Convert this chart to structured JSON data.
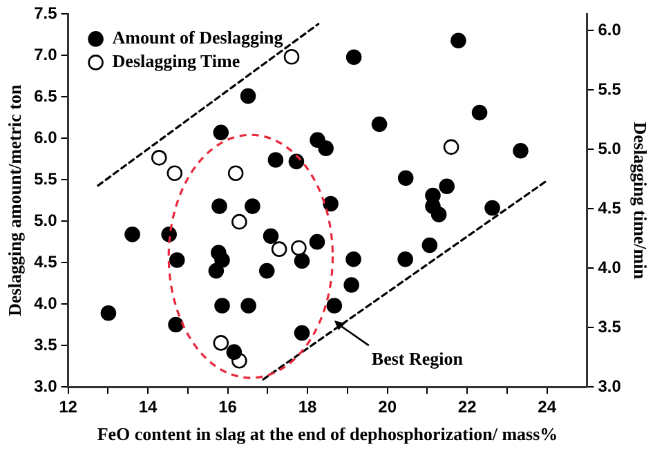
{
  "chart_data": {
    "type": "scatter",
    "xlabel": "FeO content in slag at the end of dephosphorization/ mass%",
    "ylabel": "Deslagging amount/metric ton",
    "y2label": "Deslagging time/min",
    "xlim": [
      12,
      25
    ],
    "xticks": [
      12,
      {
        "value": 13,
        "label": null
      },
      14,
      {
        "value": 15,
        "label": null
      },
      16,
      {
        "value": 17,
        "label": null
      },
      18,
      {
        "value": 19,
        "label": null
      },
      20,
      {
        "value": 21,
        "label": null
      },
      22,
      {
        "value": 23,
        "label": null
      },
      24
    ],
    "ylim": [
      3,
      7.5
    ],
    "yticks": [
      {
        "value": 3,
        "label": "3.0"
      },
      3.5,
      {
        "value": 4,
        "label": "4.0"
      },
      4.5,
      {
        "value": 5,
        "label": "5.0"
      },
      5.5,
      {
        "value": 6,
        "label": "6.0"
      },
      6.5,
      {
        "value": 7,
        "label": "7.0"
      },
      7.5
    ],
    "y2lim": [
      3,
      6.14
    ],
    "y2ticks": [
      {
        "value": 3,
        "label": "3.0"
      },
      3.5,
      {
        "value": 4,
        "label": "4.0"
      },
      4.5,
      {
        "value": 5,
        "label": "5.0"
      },
      5.5,
      {
        "value": 6,
        "label": "6.0"
      }
    ],
    "legend": "top left",
    "grid": false,
    "annotations": [
      {
        "text": "Best Region",
        "x": 18.67,
        "y": 3.8
      }
    ],
    "series": [
      {
        "name": "Amount of Deslagging",
        "color": "#000000",
        "marker": "circle",
        "x": [
          16.51,
          15.83,
          17.2,
          17.72,
          18.25,
          18.46,
          19.16,
          21.78,
          19.8,
          22.31,
          23.34,
          20.46,
          21.14,
          21.49,
          18.58,
          15.79,
          16.62,
          13.61,
          14.53,
          17.08,
          18.24,
          14.73,
          15.77,
          15.86,
          15.71,
          16.98,
          17.86,
          15.86,
          16.52,
          13.01,
          14.7,
          17.86,
          16.16,
          21.14,
          21.29,
          22.63,
          19.15,
          20.45,
          21.06,
          19.1,
          18.67
        ],
        "values": [
          6.51,
          6.07,
          5.74,
          5.72,
          5.98,
          5.88,
          6.98,
          7.18,
          6.17,
          6.31,
          5.85,
          5.52,
          5.31,
          5.42,
          5.21,
          5.18,
          5.18,
          4.84,
          4.84,
          4.82,
          4.75,
          4.53,
          4.62,
          4.53,
          4.4,
          4.4,
          4.52,
          3.98,
          3.98,
          3.89,
          3.75,
          3.65,
          3.42,
          5.18,
          5.08,
          5.16,
          4.54,
          4.54,
          4.71,
          4.23,
          3.98
        ]
      },
      {
        "name": "Deslagging Time",
        "color": "#000000",
        "marker": "circle",
        "axis": "y2",
        "x": [
          17.6,
          14.28,
          14.67,
          16.2,
          21.6,
          16.29,
          17.29,
          17.78,
          15.83,
          16.29
        ],
        "values": [
          5.78,
          4.93,
          4.8,
          4.8,
          5.02,
          4.39,
          4.16,
          4.17,
          3.37,
          3.22
        ]
      },
      {
        "type": "line",
        "color": "#000000",
        "marker": "none",
        "line_style": "dashed",
        "x": [
          12.75,
          18.27
        ],
        "values": [
          5.43,
          7.38
        ]
      },
      {
        "type": "line",
        "color": "#000000",
        "marker": "none",
        "line_style": "dashed",
        "x": [
          16.89,
          24.03
        ],
        "values": [
          3.09,
          5.5
        ]
      }
    ]
  }
}
